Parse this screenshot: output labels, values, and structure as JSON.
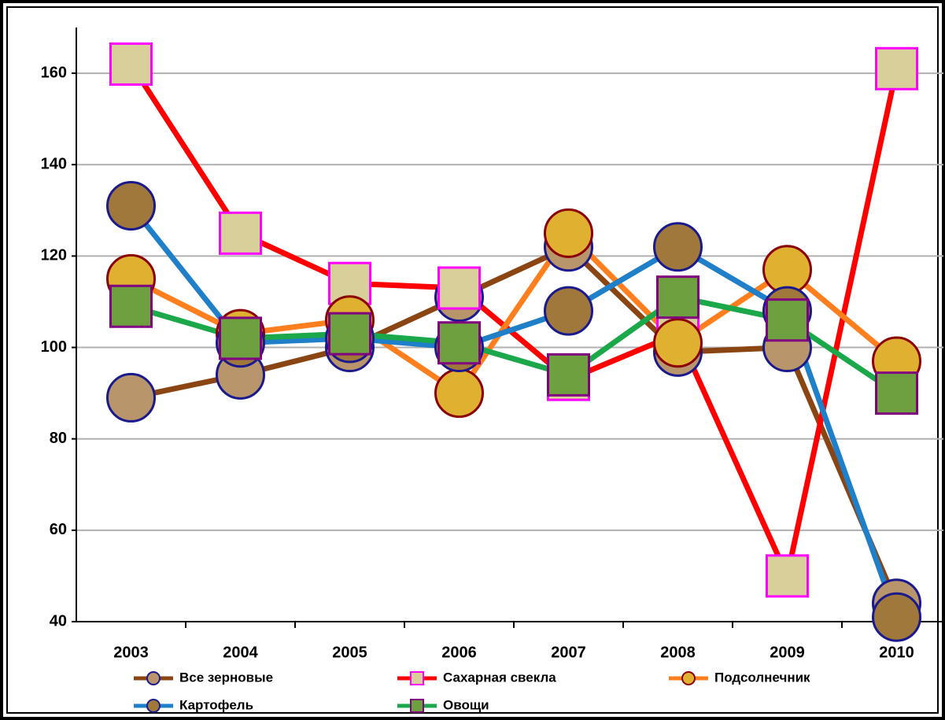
{
  "chart_data": {
    "type": "line",
    "categories": [
      "2003",
      "2004",
      "2005",
      "2006",
      "2007",
      "2008",
      "2009",
      "2010"
    ],
    "series": [
      {
        "name": "Все зерновые",
        "color": "#8b4513",
        "marker": "circle",
        "marker_edge": "#1a1a8c",
        "marker_fill": "#b8956a",
        "values": [
          89,
          94,
          100,
          111,
          122,
          99,
          100,
          44
        ]
      },
      {
        "name": "Сахарная свекла",
        "color": "#ff0000",
        "marker": "square",
        "marker_edge": "#ff00ff",
        "marker_fill": "#d8cf9a",
        "values": [
          162,
          125,
          114,
          113,
          93,
          103,
          50,
          161
        ]
      },
      {
        "name": "Подсолнечник",
        "color": "#ff7f1f",
        "marker": "circle",
        "marker_edge": "#8b0000",
        "marker_fill": "#e0b030",
        "values": [
          115,
          103,
          106,
          90,
          125,
          101,
          117,
          97
        ]
      },
      {
        "name": "Картофель",
        "color": "#1f7fc8",
        "marker": "circle",
        "marker_edge": "#1a1a8c",
        "marker_fill": "#a0783c",
        "values": [
          131,
          101,
          102,
          100,
          108,
          122,
          108,
          41
        ]
      },
      {
        "name": "Овощи",
        "color": "#1aa84a",
        "marker": "square",
        "marker_edge": "#800080",
        "marker_fill": "#6ea040",
        "values": [
          109,
          102,
          103,
          101,
          94,
          111,
          106,
          90
        ]
      }
    ],
    "ylim": [
      40,
      170
    ],
    "yticks": [
      40,
      60,
      80,
      100,
      120,
      140,
      160
    ],
    "grid": true
  }
}
